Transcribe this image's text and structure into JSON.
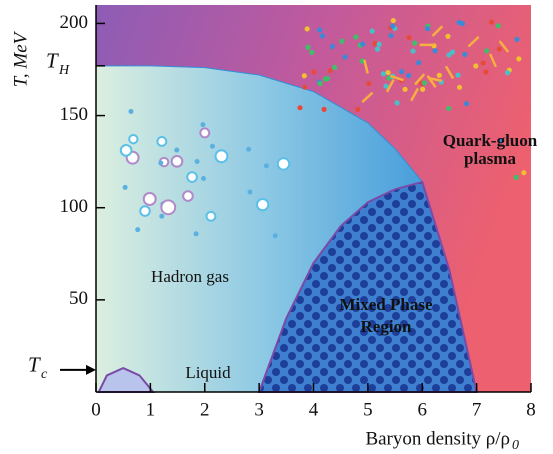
{
  "chart_data": {
    "type": "phase-diagram",
    "y_label": "T, MeV",
    "x_label": {
      "text": "Baryon density ρ/ρ",
      "subscript": "0"
    },
    "xlim": [
      0,
      8
    ],
    "ylim": [
      0,
      210
    ],
    "xticks": [
      0,
      1,
      2,
      3,
      4,
      5,
      6,
      7,
      8
    ],
    "yticks": [
      50,
      100,
      150,
      200
    ],
    "temperature_marks": [
      {
        "value": 177,
        "label": "T",
        "subscript": "H"
      },
      {
        "value": 12,
        "label": "T",
        "subscript": "c"
      }
    ],
    "regions": [
      {
        "name": "Hadron gas",
        "color": "#3a9ad8",
        "x": [
          0,
          1,
          2,
          3,
          4,
          5,
          5.5,
          6,
          6.5,
          7
        ],
        "y": [
          177,
          177,
          176,
          172,
          163,
          146,
          132,
          114,
          66,
          0
        ]
      },
      {
        "name": [
          "Mixed Phase",
          "Region"
        ],
        "color": "#2a5cb8",
        "x": [
          3,
          3.5,
          4,
          4.5,
          5,
          5.5,
          6,
          6.5,
          7
        ],
        "y": [
          0,
          40,
          70,
          90,
          103,
          110,
          114,
          66,
          0
        ]
      },
      {
        "name": "Liquid",
        "color": "#9aa8e0",
        "x": [
          0.05,
          0.2,
          0.5,
          0.8,
          1.05
        ],
        "y": [
          0,
          9,
          13,
          9,
          0
        ]
      }
    ],
    "plasma_label": [
      "Quark-gluon",
      "plasma"
    ]
  }
}
